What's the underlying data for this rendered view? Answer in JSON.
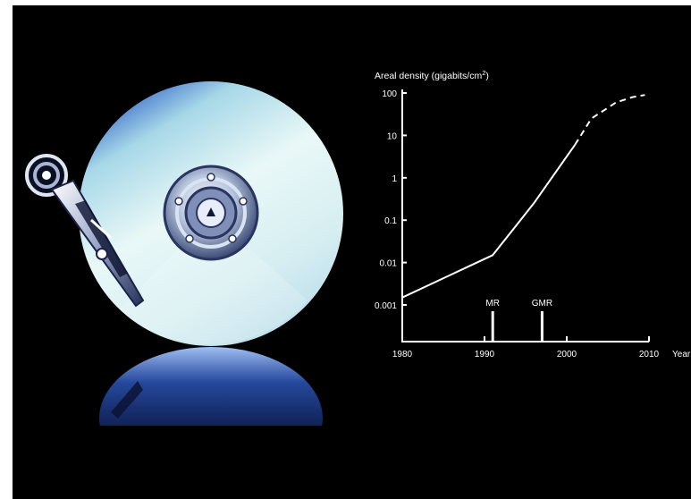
{
  "colors": {
    "background": "#000000",
    "foreground": "#ffffff",
    "disc_light": "#e6f6f6",
    "disc_blue": "#3a6fcf"
  },
  "illustration": {
    "subject": "hard-disk-platter-with-read-write-arm",
    "icons": [
      "hard-disk-platter-icon",
      "spindle-hub-icon",
      "read-write-arm-icon",
      "reflection"
    ]
  },
  "chart_data": {
    "type": "line",
    "title": "",
    "ylabel": "Areal density (gigabits/cm",
    "ylabel_superscript": "2",
    "ylabel_suffix": ")",
    "xlabel": "Year",
    "y_scale": "log",
    "xlim": [
      1980,
      2010
    ],
    "ylim": [
      0.001,
      100
    ],
    "x_ticks": [
      1980,
      1990,
      2000,
      2010
    ],
    "x_tick_labels": [
      "1980",
      "1990",
      "2000",
      "2010"
    ],
    "y_ticks": [
      0.001,
      0.01,
      0.1,
      1,
      10,
      100
    ],
    "y_tick_labels": [
      "0.001",
      "0.01",
      "0.1",
      "1",
      "10",
      "100"
    ],
    "grid": false,
    "series": [
      {
        "style": "solid",
        "x": [
          1980,
          1991,
          1996,
          2001
        ],
        "y": [
          0.0015,
          0.015,
          0.25,
          6
        ]
      },
      {
        "style": "dashed",
        "x": [
          2001,
          2003,
          2006,
          2008,
          2009.5
        ],
        "y": [
          6,
          25,
          60,
          80,
          90
        ]
      }
    ],
    "markers": [
      {
        "label": "MR",
        "x": 1991
      },
      {
        "label": "GMR",
        "x": 1997
      }
    ]
  }
}
